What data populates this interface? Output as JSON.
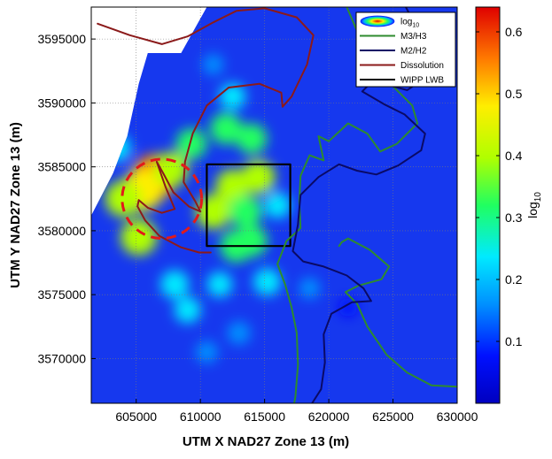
{
  "chart_data": {
    "type": "heatmap",
    "title": "",
    "xlabel": "UTM X NAD27 Zone 13 (m)",
    "ylabel": "UTM Y NAD27 Zone 13 (m)",
    "xlim": [
      601500,
      630000
    ],
    "ylim": [
      3566500,
      3597500
    ],
    "x_ticks": [
      605000,
      610000,
      615000,
      620000,
      625000,
      630000
    ],
    "x_tick_labels": [
      "605000",
      "610000",
      "615000",
      "620000",
      "625000",
      "630000"
    ],
    "y_ticks": [
      3570000,
      3575000,
      3580000,
      3585000,
      3590000,
      3595000
    ],
    "y_tick_labels": [
      "3570000",
      "3575000",
      "3580000",
      "3585000",
      "3590000",
      "3595000"
    ],
    "grid": true,
    "colorbar": {
      "label": "log10",
      "label_main": "log",
      "label_sub": "10",
      "range": [
        0,
        0.64
      ],
      "ticks": [
        0.1,
        0.2,
        0.3,
        0.4,
        0.5,
        0.6
      ],
      "tick_labels": [
        "0.1",
        "0.2",
        "0.3",
        "0.4",
        "0.5",
        "0.6"
      ]
    },
    "legend": {
      "placement": "top-right",
      "entries": [
        {
          "label_main": "log",
          "label_sub": "10",
          "kind": "patch"
        },
        {
          "label_main": "M3/H3",
          "label_sub": "",
          "kind": "line",
          "color": "#2e8b2e"
        },
        {
          "label_main": "M2/H2",
          "label_sub": "",
          "kind": "line",
          "color": "#0a0a66"
        },
        {
          "label_main": "Dissolution",
          "label_sub": "",
          "kind": "line",
          "color": "#8b1a1a"
        },
        {
          "label_main": "WIPP LWB",
          "label_sub": "",
          "kind": "line",
          "color": "#000000"
        }
      ]
    },
    "series": [
      {
        "name": "WIPP LWB",
        "color": "#000000",
        "points": [
          [
            610500,
            3578800
          ],
          [
            617000,
            3578800
          ],
          [
            617000,
            3585200
          ],
          [
            610500,
            3585200
          ],
          [
            610500,
            3578800
          ]
        ]
      },
      {
        "name": "Dissolution",
        "color": "#8b1a1a",
        "points": [
          [
            602000,
            3596200
          ],
          [
            604500,
            3595300
          ],
          [
            607000,
            3594600
          ],
          [
            609000,
            3595200
          ],
          [
            611000,
            3596300
          ],
          [
            612800,
            3597200
          ],
          [
            615000,
            3597400
          ],
          [
            617500,
            3596700
          ],
          [
            618800,
            3595300
          ],
          [
            618300,
            3593000
          ],
          [
            617100,
            3590500
          ],
          [
            616400,
            3589700
          ],
          [
            616300,
            3590800
          ],
          [
            614600,
            3591500
          ],
          [
            612200,
            3591200
          ],
          [
            610500,
            3589800
          ],
          [
            609400,
            3587600
          ],
          [
            608800,
            3585400
          ],
          [
            608700,
            3583800
          ],
          [
            609600,
            3582300
          ],
          [
            610000,
            3581500
          ],
          [
            609100,
            3581900
          ],
          [
            607900,
            3583000
          ],
          [
            607100,
            3584500
          ],
          [
            606600,
            3585400
          ],
          [
            607300,
            3583400
          ],
          [
            608000,
            3581700
          ],
          [
            607000,
            3581400
          ],
          [
            605900,
            3581800
          ],
          [
            605200,
            3582400
          ],
          [
            605100,
            3581900
          ],
          [
            605700,
            3580800
          ],
          [
            606800,
            3579600
          ],
          [
            608500,
            3578700
          ],
          [
            609900,
            3578300
          ],
          [
            610800,
            3578300
          ]
        ]
      },
      {
        "name": "M3/H3",
        "color": "#2e8b2e",
        "points": [
          [
            621400,
            3597500
          ],
          [
            622300,
            3595400
          ],
          [
            623200,
            3593200
          ],
          [
            625000,
            3591300
          ],
          [
            626500,
            3589800
          ],
          [
            626900,
            3588400
          ],
          [
            625300,
            3586800
          ],
          [
            624000,
            3586200
          ],
          [
            623000,
            3587600
          ],
          [
            621500,
            3588400
          ],
          [
            620000,
            3587000
          ],
          [
            619200,
            3587400
          ],
          [
            619600,
            3585500
          ],
          [
            618500,
            3585900
          ],
          [
            617800,
            3584300
          ],
          [
            617700,
            3582300
          ],
          [
            617800,
            3580200
          ],
          [
            616700,
            3579200
          ],
          [
            616000,
            3577400
          ],
          [
            616600,
            3575800
          ],
          [
            617100,
            3574000
          ],
          [
            617500,
            3572000
          ],
          [
            617600,
            3569500
          ],
          [
            617400,
            3567000
          ],
          [
            617300,
            3566500
          ]
        ]
      },
      {
        "name": "M3/H3 east",
        "color": "#2e8b2e",
        "points": [
          [
            630000,
            3567800
          ],
          [
            628000,
            3567900
          ],
          [
            626100,
            3568900
          ],
          [
            624500,
            3570300
          ],
          [
            623000,
            3572500
          ],
          [
            622200,
            3574300
          ],
          [
            621300,
            3575200
          ],
          [
            622300,
            3575700
          ],
          [
            624100,
            3576200
          ],
          [
            624700,
            3577200
          ],
          [
            623200,
            3578500
          ],
          [
            621500,
            3579400
          ],
          [
            621000,
            3579100
          ],
          [
            620800,
            3578800
          ]
        ]
      },
      {
        "name": "M2/H2",
        "color": "#0a0a66",
        "points": [
          [
            626000,
            3597500
          ],
          [
            626900,
            3595800
          ],
          [
            627700,
            3593600
          ],
          [
            627600,
            3592000
          ],
          [
            626100,
            3591000
          ],
          [
            624600,
            3591400
          ],
          [
            623800,
            3592600
          ],
          [
            623200,
            3591500
          ],
          [
            622600,
            3590900
          ],
          [
            624300,
            3589900
          ],
          [
            625900,
            3589100
          ],
          [
            627500,
            3587600
          ],
          [
            627200,
            3586300
          ],
          [
            625400,
            3585100
          ],
          [
            623700,
            3584400
          ],
          [
            622200,
            3584700
          ],
          [
            620800,
            3585200
          ],
          [
            619200,
            3584200
          ],
          [
            617800,
            3582800
          ],
          [
            617600,
            3580500
          ],
          [
            617200,
            3578400
          ],
          [
            618000,
            3577600
          ],
          [
            619600,
            3577200
          ],
          [
            621400,
            3576500
          ],
          [
            622700,
            3575500
          ],
          [
            623300,
            3574500
          ],
          [
            621800,
            3574400
          ],
          [
            620200,
            3573500
          ],
          [
            619600,
            3571900
          ],
          [
            619700,
            3569700
          ],
          [
            619400,
            3567600
          ],
          [
            618700,
            3566500
          ]
        ]
      },
      {
        "name": "Dashed circle",
        "color": "#e21a1a",
        "center": [
          607000,
          3582500
        ],
        "radius": 3100
      }
    ],
    "hotspots": [
      {
        "x": 606400,
        "y": 3584200,
        "value": 0.62
      },
      {
        "x": 605500,
        "y": 3583200,
        "value": 0.55
      },
      {
        "x": 604000,
        "y": 3582500,
        "value": 0.45
      },
      {
        "x": 605200,
        "y": 3579500,
        "value": 0.45
      },
      {
        "x": 607700,
        "y": 3584800,
        "value": 0.42
      },
      {
        "x": 609300,
        "y": 3586800,
        "value": 0.34
      },
      {
        "x": 611000,
        "y": 3581500,
        "value": 0.42
      },
      {
        "x": 612500,
        "y": 3583500,
        "value": 0.4
      },
      {
        "x": 613500,
        "y": 3581500,
        "value": 0.38
      },
      {
        "x": 614500,
        "y": 3584200,
        "value": 0.4
      },
      {
        "x": 612800,
        "y": 3578800,
        "value": 0.38
      },
      {
        "x": 614000,
        "y": 3579200,
        "value": 0.36
      },
      {
        "x": 612000,
        "y": 3588000,
        "value": 0.36
      },
      {
        "x": 614000,
        "y": 3587200,
        "value": 0.34
      },
      {
        "x": 612500,
        "y": 3590500,
        "value": 0.26
      },
      {
        "x": 608000,
        "y": 3575800,
        "value": 0.3
      },
      {
        "x": 609000,
        "y": 3573800,
        "value": 0.26
      },
      {
        "x": 615200,
        "y": 3576000,
        "value": 0.28
      },
      {
        "x": 611500,
        "y": 3575800,
        "value": 0.24
      },
      {
        "x": 616000,
        "y": 3582000,
        "value": 0.26
      },
      {
        "x": 610500,
        "y": 3570500,
        "value": 0.18
      },
      {
        "x": 613000,
        "y": 3572000,
        "value": 0.2
      },
      {
        "x": 618500,
        "y": 3575500,
        "value": 0.16
      },
      {
        "x": 621500,
        "y": 3574000,
        "value": 0.12
      },
      {
        "x": 611000,
        "y": 3593000,
        "value": 0.16
      },
      {
        "x": 603500,
        "y": 3586500,
        "value": 0.28
      }
    ]
  }
}
